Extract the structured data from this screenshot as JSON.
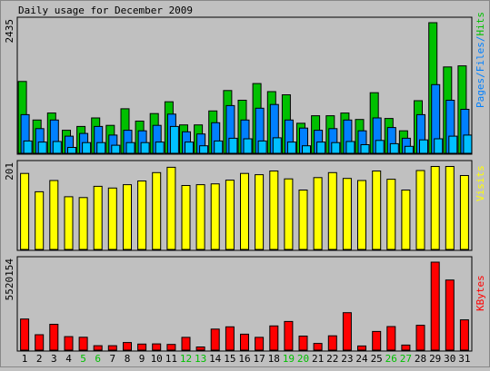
{
  "chart_data": {
    "type": "bar",
    "title": "Daily usage for December 2009",
    "categories": [
      "1",
      "2",
      "3",
      "4",
      "5",
      "6",
      "7",
      "8",
      "9",
      "10",
      "11",
      "12",
      "13",
      "14",
      "15",
      "16",
      "17",
      "18",
      "19",
      "20",
      "21",
      "22",
      "23",
      "24",
      "25",
      "26",
      "27",
      "28",
      "29",
      "30",
      "31"
    ],
    "weekend_days": [
      "5",
      "6",
      "12",
      "13",
      "19",
      "20",
      "26",
      "27"
    ],
    "panels": [
      {
        "name": "usage",
        "ymax_label": "2435",
        "ymax": 2435,
        "legend": [
          {
            "text": "Pages",
            "color": "#0080ff"
          },
          {
            "text": "/",
            "color": "#0080ff"
          },
          {
            "text": "Files",
            "color": "#0080ff"
          },
          {
            "text": "/",
            "color": "#0080ff"
          },
          {
            "text": "Hits",
            "color": "#00c000"
          }
        ],
        "series": [
          {
            "name": "Hits",
            "color": "#00c000",
            "values": [
              1340,
              620,
              750,
              430,
              500,
              660,
              520,
              830,
              600,
              740,
              960,
              530,
              530,
              790,
              1170,
              990,
              1300,
              1150,
              1090,
              560,
              700,
              700,
              750,
              630,
              1130,
              650,
              420,
              980,
              2435,
              1610,
              1630
            ]
          },
          {
            "name": "Files",
            "color": "#0080ff",
            "values": [
              720,
              460,
              620,
              320,
              370,
              500,
              340,
              430,
              420,
              520,
              730,
              400,
              360,
              570,
              890,
              620,
              840,
              910,
              620,
              470,
              430,
              460,
              620,
              420,
              660,
              480,
              280,
              720,
              1280,
              990,
              820
            ]
          },
          {
            "name": "Pages",
            "color": "#00c0ff",
            "values": [
              230,
              210,
              220,
              110,
              200,
              200,
              150,
              200,
              200,
              210,
              500,
              210,
              140,
              230,
              280,
              270,
              230,
              290,
              210,
              140,
              210,
              200,
              220,
              160,
              240,
              180,
              130,
              250,
              270,
              320,
              340
            ]
          }
        ]
      },
      {
        "name": "visits",
        "ymax_label": "201",
        "ymax": 201,
        "legend": [
          {
            "text": "Visits",
            "color": "#ffff00"
          }
        ],
        "series": [
          {
            "name": "Visits",
            "color": "#ffff00",
            "values": [
              183,
              139,
              166,
              127,
              125,
              152,
              148,
              156,
              165,
              185,
              198,
              154,
              156,
              158,
              167,
              183,
              180,
              189,
              170,
              143,
              173,
              185,
              171,
              166,
              189,
              169,
              143,
              190,
              200,
              200,
              178
            ]
          }
        ]
      },
      {
        "name": "kbytes",
        "ymax_label": "5520154",
        "ymax": 5520154,
        "legend": [
          {
            "text": "KBytes",
            "color": "#ff0000"
          }
        ],
        "series": [
          {
            "name": "KBytes",
            "color": "#ff0000",
            "values": [
              1950000,
              970000,
              1620000,
              850000,
              810000,
              280000,
              280000,
              480000,
              380000,
              390000,
              360000,
              800000,
              200000,
              1320000,
              1460000,
              1000000,
              800000,
              1520000,
              1800000,
              880000,
              420000,
              900000,
              2350000,
              260000,
              1170000,
              1480000,
              320000,
              1560000,
              5520154,
              4400000,
              1900000
            ]
          }
        ]
      }
    ]
  }
}
